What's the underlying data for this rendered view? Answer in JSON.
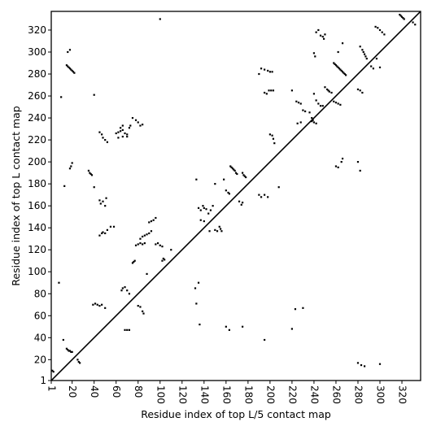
{
  "chart_data": {
    "type": "scatter",
    "title": "",
    "xlabel": "Residue index of top L/5 contact map",
    "ylabel": "Residue index of top L contact map",
    "xlim": [
      1,
      337
    ],
    "ylim": [
      1,
      337
    ],
    "x_ticks": [
      1,
      20,
      40,
      60,
      80,
      100,
      120,
      140,
      160,
      180,
      200,
      220,
      240,
      260,
      280,
      300,
      320
    ],
    "y_ticks": [
      1,
      20,
      40,
      60,
      80,
      100,
      120,
      140,
      160,
      180,
      200,
      220,
      240,
      260,
      280,
      300,
      320
    ],
    "x_tick_rotation": -90,
    "grid": false,
    "legend": "none",
    "marker": "square",
    "colors": {
      "points": "#000000",
      "diagonal": "#000000",
      "background": "#ffffff"
    },
    "reference_line": {
      "from": [
        1,
        1
      ],
      "to": [
        337,
        337
      ]
    },
    "series": [
      {
        "points": [
          [
            1,
            10
          ],
          [
            2,
            10
          ],
          [
            3,
            9
          ],
          [
            12,
            38
          ],
          [
            15,
            30
          ],
          [
            16,
            29
          ],
          [
            17,
            28
          ],
          [
            18,
            28
          ],
          [
            19,
            27
          ],
          [
            20,
            27
          ],
          [
            25,
            20
          ],
          [
            26,
            18
          ],
          [
            27,
            17
          ],
          [
            39,
            70
          ],
          [
            41,
            71
          ],
          [
            43,
            70
          ],
          [
            45,
            69
          ],
          [
            47,
            70
          ],
          [
            50,
            67
          ],
          [
            45,
            133
          ],
          [
            47,
            135
          ],
          [
            48,
            136
          ],
          [
            50,
            135
          ],
          [
            52,
            138
          ],
          [
            55,
            141
          ],
          [
            58,
            141
          ],
          [
            45,
            165
          ],
          [
            46,
            162
          ],
          [
            48,
            164
          ],
          [
            50,
            160
          ],
          [
            51,
            167
          ],
          [
            65,
            83
          ],
          [
            66,
            85
          ],
          [
            68,
            86
          ],
          [
            70,
            83
          ],
          [
            72,
            80
          ],
          [
            68,
            47
          ],
          [
            70,
            47
          ],
          [
            72,
            47
          ],
          [
            80,
            69
          ],
          [
            82,
            68
          ],
          [
            84,
            64
          ],
          [
            85,
            62
          ],
          [
            78,
            124
          ],
          [
            80,
            125
          ],
          [
            82,
            126
          ],
          [
            84,
            125
          ],
          [
            86,
            126
          ],
          [
            82,
            130
          ],
          [
            84,
            132
          ],
          [
            86,
            133
          ],
          [
            88,
            134
          ],
          [
            90,
            135
          ],
          [
            92,
            137
          ],
          [
            90,
            145
          ],
          [
            92,
            146
          ],
          [
            94,
            147
          ],
          [
            96,
            149
          ],
          [
            96,
            125
          ],
          [
            98,
            126
          ],
          [
            100,
            124
          ],
          [
            102,
            123
          ],
          [
            102,
            110
          ],
          [
            103,
            112
          ],
          [
            104,
            111
          ],
          [
            88,
            98
          ],
          [
            110,
            120
          ],
          [
            60,
            226
          ],
          [
            62,
            227
          ],
          [
            64,
            228
          ],
          [
            66,
            229
          ],
          [
            68,
            226
          ],
          [
            70,
            225
          ],
          [
            64,
            231
          ],
          [
            66,
            233
          ],
          [
            62,
            222
          ],
          [
            66,
            223
          ],
          [
            70,
            223
          ],
          [
            72,
            231
          ],
          [
            73,
            233
          ],
          [
            75,
            240
          ],
          [
            78,
            238
          ],
          [
            80,
            236
          ],
          [
            82,
            233
          ],
          [
            84,
            234
          ],
          [
            75,
            108
          ],
          [
            76,
            109
          ],
          [
            77,
            110
          ],
          [
            15,
            288
          ],
          [
            16,
            287
          ],
          [
            17,
            286
          ],
          [
            18,
            285
          ],
          [
            19,
            284
          ],
          [
            20,
            283
          ],
          [
            21,
            282
          ],
          [
            22,
            281
          ],
          [
            16,
            300
          ],
          [
            18,
            302
          ],
          [
            10,
            259
          ],
          [
            18,
            194
          ],
          [
            19,
            196
          ],
          [
            20,
            199
          ],
          [
            35,
            192
          ],
          [
            36,
            190
          ],
          [
            37,
            189
          ],
          [
            38,
            188
          ],
          [
            40,
            177
          ],
          [
            40,
            261
          ],
          [
            45,
            227
          ],
          [
            47,
            225
          ],
          [
            48,
            222
          ],
          [
            50,
            220
          ],
          [
            52,
            218
          ],
          [
            13,
            178
          ],
          [
            8,
            90
          ],
          [
            100,
            330
          ],
          [
            132,
            85
          ],
          [
            133,
            71
          ],
          [
            135,
            90
          ],
          [
            136,
            52
          ],
          [
            135,
            158
          ],
          [
            137,
            156
          ],
          [
            139,
            160
          ],
          [
            140,
            158
          ],
          [
            142,
            157
          ],
          [
            144,
            153
          ],
          [
            146,
            156
          ],
          [
            148,
            160
          ],
          [
            137,
            147
          ],
          [
            140,
            146
          ],
          [
            145,
            137
          ],
          [
            150,
            138
          ],
          [
            152,
            137
          ],
          [
            154,
            141
          ],
          [
            155,
            139
          ],
          [
            156,
            137
          ],
          [
            133,
            184
          ],
          [
            150,
            180
          ],
          [
            158,
            184
          ],
          [
            160,
            174
          ],
          [
            162,
            172
          ],
          [
            163,
            171
          ],
          [
            164,
            196
          ],
          [
            165,
            195
          ],
          [
            166,
            194
          ],
          [
            167,
            193
          ],
          [
            168,
            192
          ],
          [
            169,
            190
          ],
          [
            170,
            189
          ],
          [
            172,
            164
          ],
          [
            174,
            161
          ],
          [
            175,
            163
          ],
          [
            175,
            190
          ],
          [
            176,
            188
          ],
          [
            177,
            187
          ],
          [
            178,
            186
          ],
          [
            160,
            50
          ],
          [
            163,
            47
          ],
          [
            175,
            50
          ],
          [
            195,
            38
          ],
          [
            190,
            170
          ],
          [
            192,
            168
          ],
          [
            195,
            170
          ],
          [
            198,
            168
          ],
          [
            190,
            280
          ],
          [
            192,
            285
          ],
          [
            195,
            284
          ],
          [
            198,
            283
          ],
          [
            200,
            282
          ],
          [
            202,
            282
          ],
          [
            195,
            263
          ],
          [
            197,
            262
          ],
          [
            199,
            265
          ],
          [
            201,
            265
          ],
          [
            203,
            265
          ],
          [
            200,
            225
          ],
          [
            202,
            224
          ],
          [
            203,
            221
          ],
          [
            204,
            217
          ],
          [
            223,
            66
          ],
          [
            220,
            48
          ],
          [
            208,
            177
          ],
          [
            230,
            67
          ],
          [
            220,
            265
          ],
          [
            224,
            255
          ],
          [
            226,
            254
          ],
          [
            228,
            253
          ],
          [
            230,
            247
          ],
          [
            232,
            246
          ],
          [
            236,
            245
          ],
          [
            238,
            240
          ],
          [
            239,
            238
          ],
          [
            225,
            235
          ],
          [
            228,
            236
          ],
          [
            240,
            299
          ],
          [
            241,
            296
          ],
          [
            242,
            318
          ],
          [
            244,
            320
          ],
          [
            246,
            315
          ],
          [
            248,
            314
          ],
          [
            249,
            312
          ],
          [
            250,
            316
          ],
          [
            240,
            262
          ],
          [
            242,
            256
          ],
          [
            244,
            253
          ],
          [
            246,
            251
          ],
          [
            248,
            251
          ],
          [
            238,
            237
          ],
          [
            240,
            236
          ],
          [
            242,
            235
          ],
          [
            250,
            268
          ],
          [
            252,
            266
          ],
          [
            253,
            265
          ],
          [
            254,
            264
          ],
          [
            256,
            263
          ],
          [
            258,
            290
          ],
          [
            259,
            289
          ],
          [
            260,
            288
          ],
          [
            261,
            287
          ],
          [
            262,
            286
          ],
          [
            263,
            285
          ],
          [
            264,
            284
          ],
          [
            265,
            283
          ],
          [
            266,
            282
          ],
          [
            267,
            281
          ],
          [
            268,
            280
          ],
          [
            269,
            279
          ],
          [
            262,
            300
          ],
          [
            266,
            308
          ],
          [
            260,
            196
          ],
          [
            262,
            195
          ],
          [
            265,
            200
          ],
          [
            266,
            203
          ],
          [
            258,
            255
          ],
          [
            260,
            254
          ],
          [
            262,
            253
          ],
          [
            264,
            252
          ],
          [
            280,
            200
          ],
          [
            282,
            192
          ],
          [
            280,
            266
          ],
          [
            282,
            265
          ],
          [
            284,
            263
          ],
          [
            282,
            305
          ],
          [
            284,
            302
          ],
          [
            285,
            300
          ],
          [
            286,
            298
          ],
          [
            287,
            296
          ],
          [
            288,
            294
          ],
          [
            292,
            287
          ],
          [
            294,
            285
          ],
          [
            296,
            323
          ],
          [
            298,
            322
          ],
          [
            300,
            320
          ],
          [
            302,
            318
          ],
          [
            304,
            316
          ],
          [
            297,
            294
          ],
          [
            300,
            286
          ],
          [
            280,
            17
          ],
          [
            283,
            15
          ],
          [
            286,
            14
          ],
          [
            300,
            16
          ],
          [
            318,
            334
          ],
          [
            319,
            333
          ],
          [
            320,
            332
          ],
          [
            321,
            331
          ],
          [
            322,
            330
          ],
          [
            330,
            327
          ],
          [
            332,
            325
          ]
        ]
      }
    ]
  }
}
